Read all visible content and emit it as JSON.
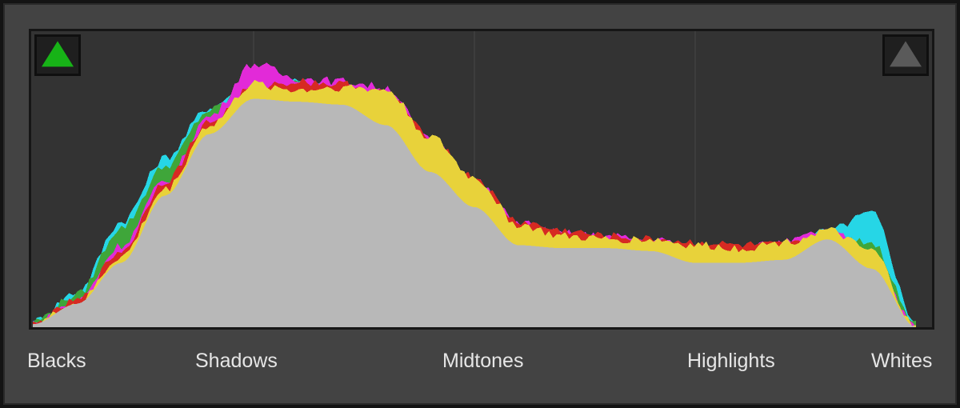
{
  "histogram": {
    "title": "",
    "colors": {
      "luminance": "#b8b8b8",
      "blue": "#4a74d6",
      "cyan": "#26d6e6",
      "green": "#3fa63a",
      "magenta": "#e22ad8",
      "red": "#d62a22",
      "yellow": "#e8d23a",
      "background": "#333333",
      "gridline": "#3d3d3d"
    },
    "gridlines": [
      0.25,
      0.5,
      0.75
    ],
    "shadow_clip_indicator": {
      "icon": "triangle-up-icon",
      "state": "on",
      "color": "#17b317"
    },
    "highlight_clip_indicator": {
      "icon": "triangle-up-icon",
      "state": "off",
      "color": "#5a5a5a"
    }
  },
  "labels": {
    "blacks": "Blacks",
    "shadows": "Shadows",
    "midtones": "Midtones",
    "highlights": "Highlights",
    "whites": "Whites"
  },
  "chart_data": {
    "type": "area",
    "x": [
      0,
      0.05,
      0.1,
      0.15,
      0.2,
      0.25,
      0.3,
      0.35,
      0.4,
      0.45,
      0.5,
      0.55,
      0.6,
      0.65,
      0.7,
      0.75,
      0.8,
      0.85,
      0.9,
      0.95,
      1.0
    ],
    "series": [
      {
        "values": [
          0.01,
          0.08,
          0.22,
          0.45,
          0.68,
          0.82,
          0.8,
          0.8,
          0.71,
          0.55,
          0.42,
          0.3,
          0.28,
          0.28,
          0.27,
          0.24,
          0.23,
          0.24,
          0.3,
          0.22,
          0.0
        ]
      },
      {
        "values": [
          0.02,
          0.12,
          0.36,
          0.58,
          0.75,
          0.85,
          0.84,
          0.82,
          0.75,
          0.6,
          0.47,
          0.33,
          0.3,
          0.3,
          0.29,
          0.26,
          0.25,
          0.26,
          0.33,
          0.39,
          0.02
        ]
      },
      {
        "values": [
          0.02,
          0.11,
          0.34,
          0.55,
          0.74,
          0.84,
          0.83,
          0.81,
          0.74,
          0.59,
          0.46,
          0.32,
          0.3,
          0.29,
          0.28,
          0.25,
          0.25,
          0.25,
          0.3,
          0.29,
          0.01
        ]
      },
      {
        "values": [
          0.01,
          0.09,
          0.28,
          0.5,
          0.72,
          0.9,
          0.85,
          0.84,
          0.82,
          0.64,
          0.5,
          0.36,
          0.32,
          0.31,
          0.3,
          0.28,
          0.27,
          0.29,
          0.33,
          0.25,
          0.0
        ]
      },
      {
        "values": [
          0.01,
          0.09,
          0.26,
          0.5,
          0.7,
          0.82,
          0.84,
          0.83,
          0.8,
          0.65,
          0.51,
          0.36,
          0.33,
          0.31,
          0.3,
          0.29,
          0.28,
          0.28,
          0.3,
          0.23,
          0.0
        ]
      },
      {
        "values": [
          0.01,
          0.08,
          0.24,
          0.47,
          0.69,
          0.83,
          0.81,
          0.82,
          0.81,
          0.65,
          0.51,
          0.35,
          0.31,
          0.3,
          0.3,
          0.28,
          0.27,
          0.29,
          0.33,
          0.26,
          0.0
        ]
      },
      {
        "values": [
          0.01,
          0.08,
          0.22,
          0.45,
          0.66,
          0.78,
          0.77,
          0.76,
          0.69,
          0.53,
          0.41,
          0.28,
          0.27,
          0.27,
          0.26,
          0.22,
          0.22,
          0.23,
          0.3,
          0.2,
          0.0
        ]
      }
    ],
    "xlim": [
      0,
      1
    ],
    "ylim": [
      0,
      1
    ],
    "grid": "vertical",
    "legend": "none"
  }
}
